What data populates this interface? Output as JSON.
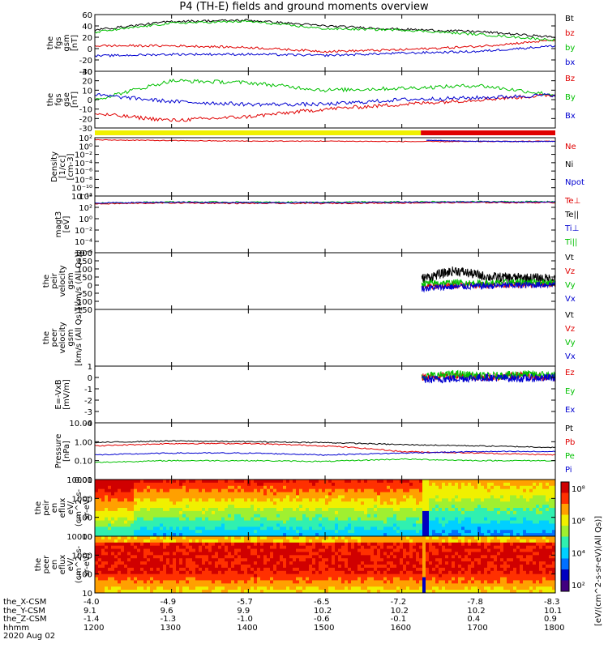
{
  "title": "P4 (TH-E) fields and ground moments overview",
  "panels": [
    {
      "id": "fgs-gsm",
      "ylabel": [
        "the",
        "fgs",
        "gsm",
        "[nT]"
      ],
      "ticks": [
        "60",
        "40",
        "20",
        "0",
        "-20",
        "-40"
      ],
      "legend": [
        {
          "t": "Bt",
          "c": "#000000"
        },
        {
          "t": "bz",
          "c": "#e00000"
        },
        {
          "t": "by",
          "c": "#00c000"
        },
        {
          "t": "bx",
          "c": "#0000d0"
        }
      ]
    },
    {
      "id": "fgs-gse",
      "ylabel": [
        "the",
        "fgs",
        "gse",
        "[nT]"
      ],
      "ticks": [
        "30",
        "20",
        "10",
        "0",
        "-10",
        "-20",
        "-30"
      ],
      "legend": [
        {
          "t": "Bz",
          "c": "#e00000"
        },
        {
          "t": "By",
          "c": "#00c000"
        },
        {
          "t": "Bx",
          "c": "#0000d0"
        }
      ]
    },
    {
      "id": "density",
      "ylabel": [
        "Density",
        "[1/cc]",
        "[cm-3]"
      ],
      "ticks": [
        "10²",
        "10⁰",
        "10⁻²",
        "10⁻⁴",
        "10⁻⁶",
        "10⁻⁸",
        "10⁻¹⁰",
        "10⁻¹²"
      ],
      "legend": [
        {
          "t": "Ne",
          "c": "#e00000"
        },
        {
          "t": "Ni",
          "c": "#000000"
        },
        {
          "t": "Npot",
          "c": "#0000d0"
        }
      ]
    },
    {
      "id": "temp",
      "ylabel": [
        "magt3",
        "[eV]"
      ],
      "ticks": [
        "10⁴",
        "10²",
        "10⁰",
        "10⁻²",
        "10⁻⁴",
        "10⁻⁶"
      ],
      "legend": [
        {
          "t": "Te⊥",
          "c": "#e00000"
        },
        {
          "t": "Te||",
          "c": "#000000"
        },
        {
          "t": "Ti⊥",
          "c": "#0000d0"
        },
        {
          "t": "Ti||",
          "c": "#00c000"
        }
      ]
    },
    {
      "id": "peir-vel",
      "ylabel": [
        "the",
        "peir",
        "velocity",
        "gsm",
        "[km/s (All Qs)]"
      ],
      "ticks": [
        "200",
        "150",
        "100",
        "50",
        "0",
        "-50",
        "-100",
        "-150"
      ],
      "legend": [
        {
          "t": "Vt",
          "c": "#000000"
        },
        {
          "t": "Vz",
          "c": "#e00000"
        },
        {
          "t": "Vy",
          "c": "#00c000"
        },
        {
          "t": "Vx",
          "c": "#0000d0"
        }
      ]
    },
    {
      "id": "peer-vel",
      "ylabel": [
        "the",
        "peer",
        "velocity",
        "gsm",
        "[km/s (All Qs)]"
      ],
      "ticks": [],
      "legend": [
        {
          "t": "Vt",
          "c": "#000000"
        },
        {
          "t": "Vz",
          "c": "#e00000"
        },
        {
          "t": "Vy",
          "c": "#00c000"
        },
        {
          "t": "Vx",
          "c": "#0000d0"
        }
      ]
    },
    {
      "id": "efield",
      "ylabel": [
        "E=-VxB",
        "[mV/m]"
      ],
      "ticks": [
        "1",
        "0",
        "-1",
        "-2",
        "-3",
        "-4"
      ],
      "legend": [
        {
          "t": "Ez",
          "c": "#e00000"
        },
        {
          "t": "Ey",
          "c": "#00c000"
        },
        {
          "t": "Ex",
          "c": "#0000d0"
        }
      ]
    },
    {
      "id": "pressure",
      "ylabel": [
        "Pressure",
        "[nPa]"
      ],
      "ticks": [
        "10.00",
        "1.00",
        "0.10",
        "0.01"
      ],
      "legend": [
        {
          "t": "Pt",
          "c": "#000000"
        },
        {
          "t": "Pb",
          "c": "#e00000"
        },
        {
          "t": "Pe",
          "c": "#00c000"
        },
        {
          "t": "Pi",
          "c": "#0000d0"
        }
      ]
    },
    {
      "id": "peir-spec",
      "ylabel": [
        "the",
        "peir",
        "en",
        "eflux",
        "eV/",
        "(cm^2-s-",
        "sr-eV)"
      ],
      "ticks": [
        "10000",
        "1000",
        "100",
        "10"
      ],
      "legend": []
    },
    {
      "id": "peer-spec",
      "ylabel": [
        "the",
        "peer",
        "en",
        "eflux",
        "eV/",
        "(cm^2-s-",
        "sr-eV)"
      ],
      "ticks": [
        "10000",
        "1000",
        "100",
        "10"
      ],
      "legend": []
    }
  ],
  "colorbar": {
    "ticks": [
      "10⁸",
      "10⁶",
      "10⁴",
      "10²"
    ],
    "label": "[eV/(cm^2-s-sr-eV)(All Qs)]"
  },
  "xaxis": {
    "rownames": [
      "the_X-CSM",
      "the_Y-CSM",
      "the_Z-CSM",
      "hhmm",
      "2020 Aug 02"
    ],
    "X": [
      "-4.0",
      "-4.9",
      "-5.7",
      "-6.5",
      "-7.2",
      "-7.8",
      "-8.3"
    ],
    "Y": [
      "9.1",
      "9.6",
      "9.9",
      "10.2",
      "10.2",
      "10.2",
      "10.1"
    ],
    "Z": [
      "-1.4",
      "-1.3",
      "-1.0",
      "-0.6",
      "-0.1",
      "0.4",
      "0.9"
    ],
    "hhmm": [
      "1200",
      "1300",
      "1400",
      "1500",
      "1600",
      "1700",
      "1800"
    ]
  },
  "chart_data": [
    {
      "type": "line",
      "title": "P4 (TH-E) fields and ground moments overview",
      "ylabel": "the fgs gsm [nT]",
      "x": [
        "1200",
        "1300",
        "1400",
        "1500",
        "1600",
        "1700",
        "1800"
      ],
      "ylim": [
        -40,
        60
      ],
      "series": [
        {
          "name": "Bt",
          "values": [
            33,
            48,
            50,
            40,
            34,
            30,
            20
          ]
        },
        {
          "name": "bz",
          "values": [
            5,
            5,
            2,
            -5,
            -2,
            4,
            15
          ]
        },
        {
          "name": "by",
          "values": [
            29,
            45,
            48,
            35,
            33,
            25,
            15
          ]
        },
        {
          "name": "bx",
          "values": [
            -13,
            -10,
            -10,
            -12,
            -8,
            -5,
            5
          ]
        }
      ]
    },
    {
      "type": "line",
      "ylabel": "the fgs gse [nT]",
      "x": [
        "1200",
        "1300",
        "1400",
        "1500",
        "1600",
        "1700",
        "1800"
      ],
      "ylim": [
        -30,
        30
      ],
      "series": [
        {
          "name": "Bz",
          "values": [
            -15,
            -22,
            -18,
            -10,
            -5,
            0,
            5
          ]
        },
        {
          "name": "By",
          "values": [
            0,
            20,
            18,
            10,
            12,
            15,
            5
          ]
        },
        {
          "name": "Bx",
          "values": [
            5,
            -2,
            -5,
            -5,
            0,
            2,
            5
          ]
        }
      ]
    },
    {
      "type": "line",
      "ylabel": "Density [1/cc] [cm-3]",
      "x": [
        "1200",
        "1300",
        "1400",
        "1500",
        "1600",
        "1700",
        "1800"
      ],
      "scale": "log",
      "series": [
        {
          "name": "Ne",
          "values": [
            30,
            20,
            15,
            15,
            12,
            12,
            15
          ]
        }
      ]
    },
    {
      "type": "line",
      "ylabel": "magt3 [eV]",
      "x": [
        "1200",
        "1300",
        "1400",
        "1500",
        "1600",
        "1700",
        "1800"
      ],
      "scale": "log",
      "series": [
        {
          "name": "Ti||",
          "values": [
            500,
            900,
            800,
            800,
            900,
            1000,
            1000
          ]
        }
      ]
    },
    {
      "type": "line",
      "ylabel": "the peir velocity gsm [km/s (All Qs)]",
      "x": [
        "1610",
        "1650",
        "1700",
        "1750",
        "1800"
      ],
      "ylim": [
        -150,
        200
      ],
      "series": [
        {
          "name": "Vt",
          "values": [
            40,
            90,
            50,
            45,
            40
          ]
        },
        {
          "name": "Vz",
          "values": [
            -10,
            0,
            5,
            0,
            5
          ]
        },
        {
          "name": "Vy",
          "values": [
            10,
            15,
            10,
            20,
            15
          ]
        },
        {
          "name": "Vx",
          "values": [
            -20,
            -10,
            -5,
            0,
            5
          ]
        }
      ]
    },
    {
      "type": "line",
      "ylabel": "E=-VxB [mV/m]",
      "x": [
        "1610",
        "1650",
        "1700",
        "1750",
        "1800"
      ],
      "ylim": [
        -4,
        1
      ],
      "series": [
        {
          "name": "Ez",
          "values": [
            0,
            0.2,
            0,
            0.2,
            0
          ]
        },
        {
          "name": "Ey",
          "values": [
            0.1,
            0.3,
            0.1,
            0.3,
            0.2
          ]
        },
        {
          "name": "Ex",
          "values": [
            -0.2,
            -0.1,
            0,
            -0.1,
            0
          ]
        }
      ]
    },
    {
      "type": "line",
      "ylabel": "Pressure [nPa]",
      "x": [
        "1200",
        "1300",
        "1400",
        "1500",
        "1600",
        "1700",
        "1800"
      ],
      "scale": "log",
      "series": [
        {
          "name": "Pt",
          "values": [
            0.9,
            1.1,
            1.0,
            0.9,
            0.7,
            0.6,
            0.5
          ]
        },
        {
          "name": "Pb",
          "values": [
            0.6,
            0.8,
            0.8,
            0.6,
            0.3,
            0.25,
            0.2
          ]
        },
        {
          "name": "Pe",
          "values": [
            0.08,
            0.1,
            0.1,
            0.09,
            0.12,
            0.1,
            0.1
          ]
        },
        {
          "name": "Pi",
          "values": [
            0.2,
            0.25,
            0.25,
            0.2,
            0.25,
            0.3,
            0.3
          ]
        }
      ]
    }
  ]
}
